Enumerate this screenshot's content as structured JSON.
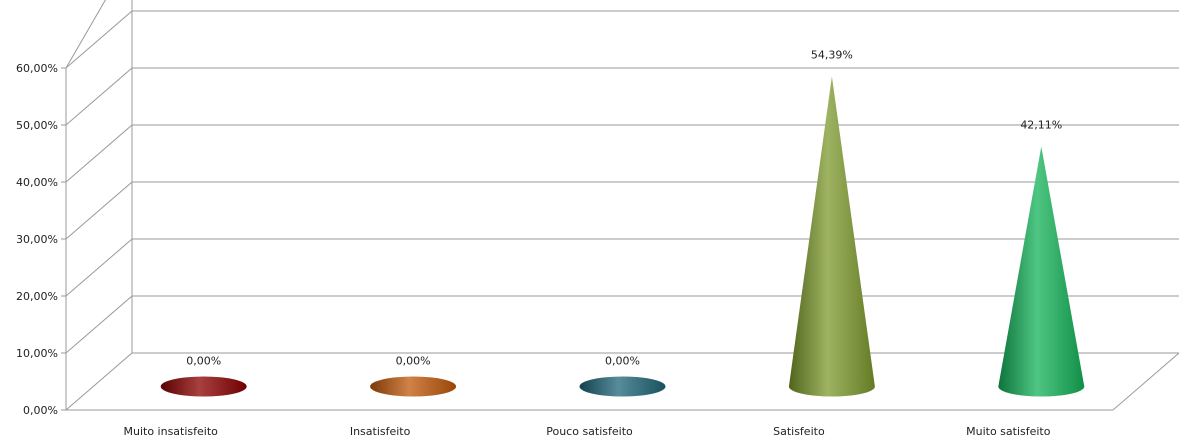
{
  "chart_data": {
    "type": "bar",
    "subtype": "3d-cone",
    "categories": [
      "Muito insatisfeito",
      "Insatisfeito",
      "Pouco satisfeito",
      "Satisfeito",
      "Muito satisfeito"
    ],
    "values": [
      0.0,
      0.0,
      0.0,
      54.39,
      42.11
    ],
    "data_labels": [
      "0,00%",
      "0,00%",
      "0,00%",
      "54,39%",
      "42,11%"
    ],
    "ytick_labels": [
      "0,00%",
      "10,00%",
      "20,00%",
      "30,00%",
      "40,00%",
      "50,00%",
      "60,00%"
    ],
    "ylim": [
      0,
      60
    ],
    "ytick_step": 10,
    "grid": true,
    "legend": "none",
    "colors": [
      "#8b0000",
      "#c0580a",
      "#1f6678",
      "#7d9a2d",
      "#14b35a"
    ]
  }
}
